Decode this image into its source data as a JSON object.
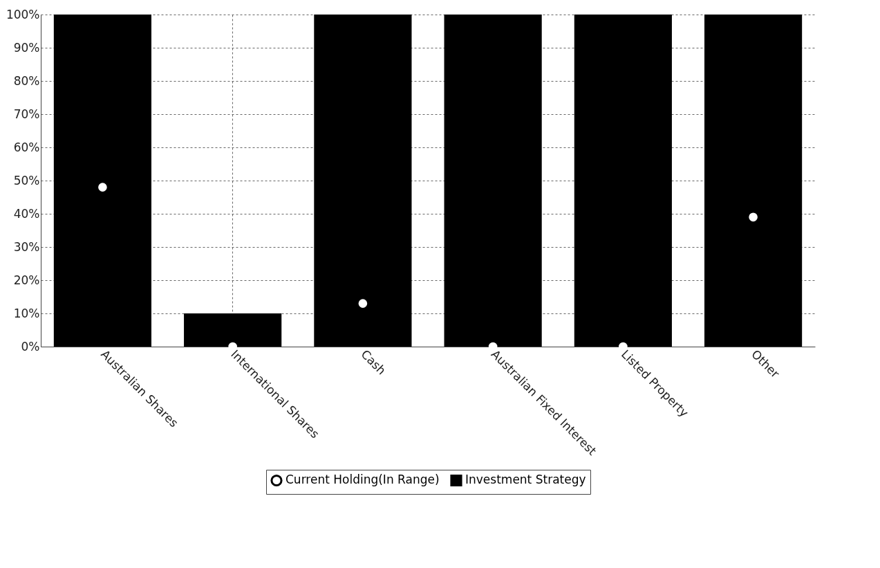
{
  "chart_data": {
    "type": "bar",
    "categories": [
      "Australian Shares",
      "International Shares",
      "Cash",
      "Australian Fixed Interest",
      "Listed Property",
      "Other"
    ],
    "series": [
      {
        "name": "Current Holding(In Range)",
        "type": "scatter",
        "color": "#ffffff",
        "values": [
          48,
          0,
          13,
          0,
          0,
          39
        ]
      },
      {
        "name": "Investment Strategy",
        "color": "#000000",
        "values": [
          100,
          10,
          100,
          100,
          100,
          100
        ]
      }
    ],
    "ylim": [
      0,
      100
    ],
    "yticks": [
      {
        "value": 0,
        "label": "0%"
      },
      {
        "value": 10,
        "label": "10%"
      },
      {
        "value": 20,
        "label": "20%"
      },
      {
        "value": 30,
        "label": "30%"
      },
      {
        "value": 40,
        "label": "40%"
      },
      {
        "value": 50,
        "label": "50%"
      },
      {
        "value": 60,
        "label": "60%"
      },
      {
        "value": 70,
        "label": "70%"
      },
      {
        "value": 80,
        "label": "80%"
      },
      {
        "value": 90,
        "label": "90%"
      },
      {
        "value": 100,
        "label": "100%"
      }
    ],
    "grid": true,
    "legend": "bottom",
    "marker": "circle"
  }
}
